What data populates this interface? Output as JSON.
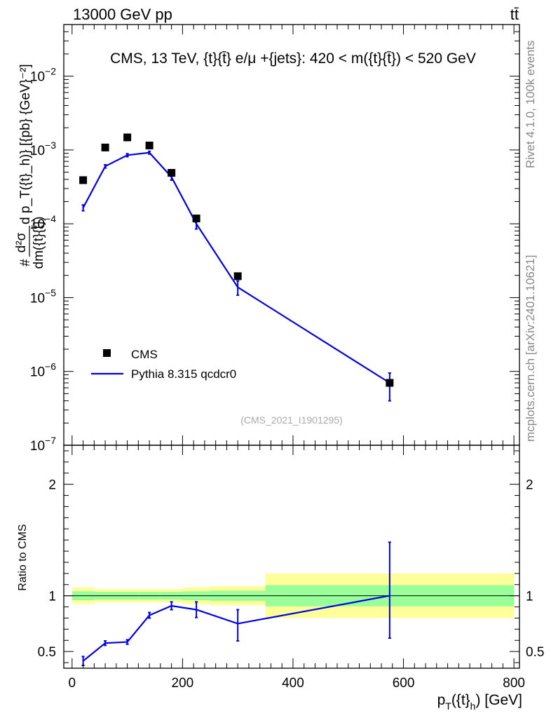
{
  "header": {
    "energy_label": "13000 GeV pp",
    "process_label": "tt̄"
  },
  "side_labels": {
    "rivet": "Rivet 4.1.0,  100k events",
    "mcplots": "mcplots.cern.ch [arXiv:2401.10621]"
  },
  "chart_data": [
    {
      "type": "scatter",
      "panel": "main",
      "title": "CMS, 13 TeV, {t}{t̄} e/μ +{jets}: 420 < m({t}{t̄}) < 520 GeV",
      "watermark": "(CMS_2021_I1901295)",
      "ylabel_parts": {
        "hash": "#",
        "numerator": "d²σ",
        "denominator": "dm({t}{t̄})",
        "rest": " d p_T({t}_h)} [{pb} {GeV}⁻²]"
      },
      "ylabel_text": "#d²σ/dm({t}{t̄}) d p_T({t}_h)} [{pb} {GeV}⁻²]",
      "yscale": "log",
      "ylim": [
        1e-07,
        0.05
      ],
      "xlim": [
        -15,
        810
      ],
      "ytick_labels": [
        {
          "value": 1e-07,
          "base": "10",
          "exp": "−7"
        },
        {
          "value": 1e-06,
          "base": "10",
          "exp": "−6"
        },
        {
          "value": 1e-05,
          "base": "10",
          "exp": "−5"
        },
        {
          "value": 0.0001,
          "base": "10",
          "exp": "−4"
        },
        {
          "value": 0.001,
          "base": "10",
          "exp": "−3"
        },
        {
          "value": 0.01,
          "base": "10",
          "exp": "−2"
        }
      ],
      "legend_position": "bottom-left",
      "series": [
        {
          "name": "CMS",
          "kind": "data",
          "color": "#000000",
          "x": [
            20,
            60,
            100,
            140,
            180,
            225,
            300,
            575
          ],
          "y": [
            0.00039,
            0.00108,
            0.00148,
            0.00115,
            0.00049,
            0.000118,
            1.95e-05,
            7e-07
          ]
        },
        {
          "name": "Pythia 8.315 qcdcr0",
          "kind": "mc",
          "color": "#0000e6",
          "x": [
            20,
            60,
            100,
            140,
            180,
            225,
            300,
            575
          ],
          "y": [
            0.000165,
            0.0006,
            0.00085,
            0.00092,
            0.00043,
            0.0001,
            1.38e-05,
            7e-07
          ],
          "yerr_low": [
            1.5e-05,
            3e-05,
            4e-05,
            4e-05,
            4e-05,
            1.5e-05,
            3e-06,
            3e-07
          ],
          "yerr_high": [
            1.5e-05,
            3e-05,
            4e-05,
            4e-05,
            4e-05,
            1.5e-05,
            3e-06,
            2.5e-07
          ]
        }
      ]
    },
    {
      "type": "line",
      "panel": "ratio",
      "ylabel": "Ratio to CMS",
      "xlabel_parts": {
        "pre": "p",
        "sub1": "T",
        "mid": "({t}",
        "sub2": "h",
        "post": ") [GeV]"
      },
      "xlabel_text": "p_T({t}_h) [GeV]",
      "ylim": [
        0.35,
        2.35
      ],
      "xlim": [
        -15,
        810
      ],
      "xtick_labels": [
        "0",
        "200",
        "400",
        "600",
        "800"
      ],
      "xtick_values": [
        0,
        200,
        400,
        600,
        800
      ],
      "ytick_labels": [
        "0.5",
        "1",
        "2"
      ],
      "ytick_values": [
        0.5,
        1,
        2
      ],
      "reference_line": 1.0,
      "bands": [
        {
          "x0": 0,
          "x1": 40,
          "yellow": [
            0.925,
            1.075
          ],
          "green": [
            0.96,
            1.04
          ]
        },
        {
          "x0": 40,
          "x1": 120,
          "yellow": [
            0.94,
            1.06
          ],
          "green": [
            0.965,
            1.035
          ]
        },
        {
          "x0": 120,
          "x1": 160,
          "yellow": [
            0.94,
            1.06
          ],
          "green": [
            0.965,
            1.035
          ]
        },
        {
          "x0": 160,
          "x1": 200,
          "yellow": [
            0.94,
            1.06
          ],
          "green": [
            0.965,
            1.035
          ]
        },
        {
          "x0": 200,
          "x1": 250,
          "yellow": [
            0.925,
            1.075
          ],
          "green": [
            0.96,
            1.04
          ]
        },
        {
          "x0": 250,
          "x1": 350,
          "yellow": [
            0.915,
            1.085
          ],
          "green": [
            0.955,
            1.045
          ]
        },
        {
          "x0": 350,
          "x1": 800,
          "yellow": [
            0.8,
            1.2
          ],
          "green": [
            0.905,
            1.095
          ]
        }
      ],
      "series": [
        {
          "name": "Pythia 8.315 qcdcr0 / CMS",
          "color": "#0000e6",
          "x": [
            20,
            60,
            100,
            140,
            180,
            225,
            300,
            575
          ],
          "y": [
            0.415,
            0.575,
            0.585,
            0.825,
            0.91,
            0.875,
            0.75,
            1.0
          ],
          "yerr_low": [
            0.04,
            0.02,
            0.02,
            0.025,
            0.035,
            0.07,
            0.155,
            0.38
          ],
          "yerr_high": [
            0.04,
            0.02,
            0.02,
            0.025,
            0.035,
            0.07,
            0.125,
            0.48
          ]
        }
      ]
    }
  ]
}
